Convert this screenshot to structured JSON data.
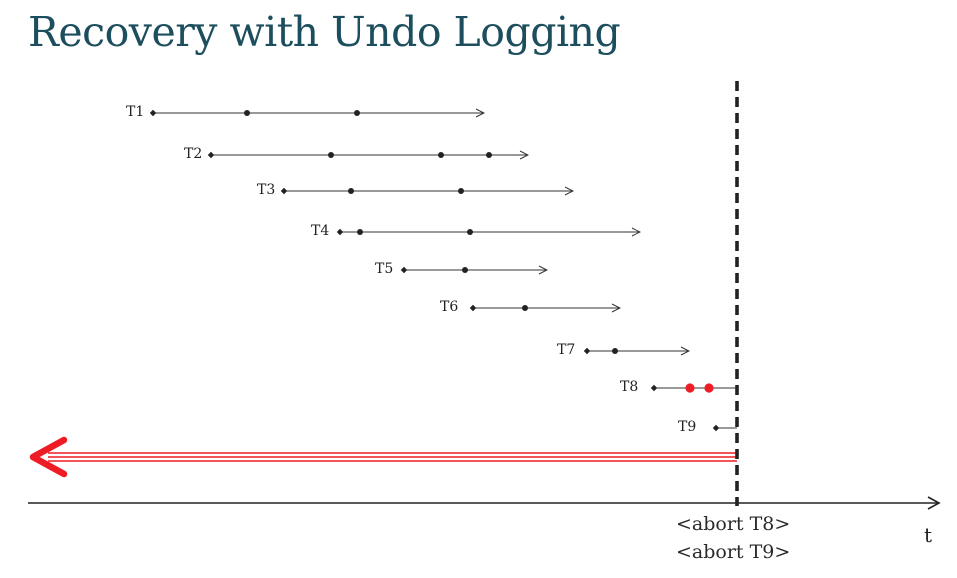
{
  "slide": {
    "title": "Recovery with Undo Logging"
  },
  "transactions": [
    {
      "label": "T1",
      "status": "committed"
    },
    {
      "label": "T2",
      "status": "committed"
    },
    {
      "label": "T3",
      "status": "committed"
    },
    {
      "label": "T4",
      "status": "committed"
    },
    {
      "label": "T5",
      "status": "committed"
    },
    {
      "label": "T6",
      "status": "committed"
    },
    {
      "label": "T7",
      "status": "committed"
    },
    {
      "label": "T8",
      "status": "incomplete"
    },
    {
      "label": "T9",
      "status": "incomplete"
    }
  ],
  "axis": {
    "label": "t"
  },
  "abort_notes": [
    "<abort T8>",
    "<abort T9>"
  ],
  "colors": {
    "title": "#1d4e5d",
    "line": "#333333",
    "undo_arrow": "#ee1c24",
    "undone_write": "#ee1c24"
  }
}
